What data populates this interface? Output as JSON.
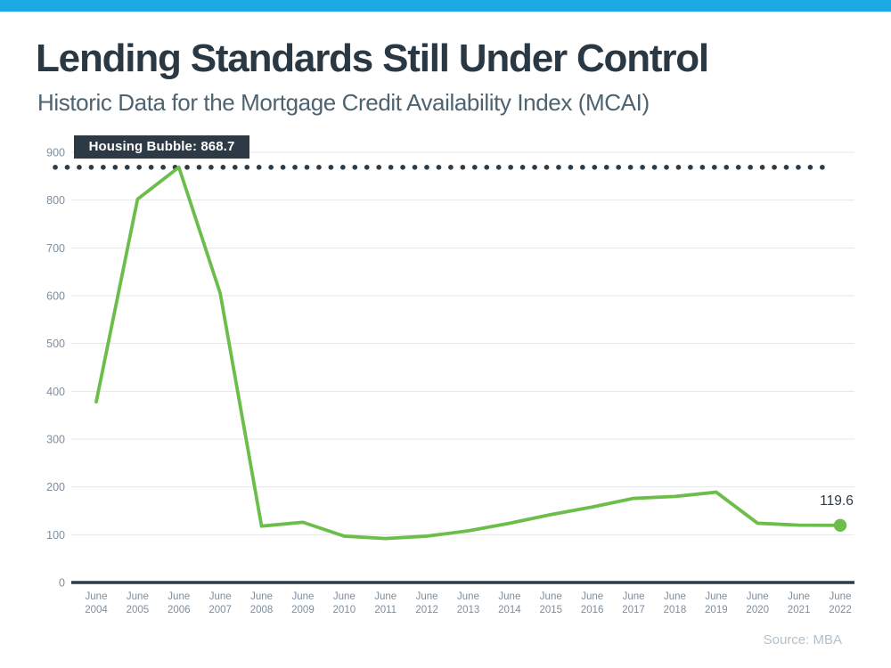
{
  "header": {
    "title": "Lending Standards Still Under Control",
    "subtitle": "Historic Data for the Mortgage Credit Availability Index (MCAI)"
  },
  "footer": {
    "source": "Source: MBA"
  },
  "colors": {
    "accent_bar": "#1BA8E5",
    "line": "#6CBE4B",
    "dark": "#2E3C48",
    "grid": "#E7E7E7",
    "axis_text": "#7E8E9C",
    "title_text": "#2A3844",
    "subtitle_text": "#4D6370",
    "annotation_text": "#2F3A42",
    "source_text": "#B4C1CA",
    "callout_bg": "#2D3A45",
    "callout_text": "#FFFFFF"
  },
  "chart_data": {
    "type": "line",
    "title": "Historic Data for the Mortgage Credit Availability Index (MCAI)",
    "xlabel": "",
    "ylabel": "",
    "ylim": [
      0,
      900
    ],
    "yticks": [
      0,
      100,
      200,
      300,
      400,
      500,
      600,
      700,
      800,
      900
    ],
    "grid": true,
    "legend_position": "none",
    "categories": [
      "June 2004",
      "June 2005",
      "June 2006",
      "June 2007",
      "June 2008",
      "June 2009",
      "June 2010",
      "June 2011",
      "June 2012",
      "June 2013",
      "June 2014",
      "June 2015",
      "June 2016",
      "June 2017",
      "June 2018",
      "June 2019",
      "June 2020",
      "June 2021",
      "June 2022"
    ],
    "series": [
      {
        "name": "MCAI",
        "values": [
          378,
          802,
          868.7,
          605,
          118,
          126,
          97,
          92,
          97,
          108,
          124,
          142,
          158,
          176,
          180,
          189,
          124,
          120,
          119.6
        ]
      }
    ],
    "reference_line": {
      "value": 868.7,
      "label": "Housing Bubble: 868.7",
      "style": "dotted"
    },
    "annotations": {
      "housing_bubble_label": "Housing Bubble: 868.7",
      "latest_value_label": "119.6"
    },
    "last_point_marker": true
  }
}
